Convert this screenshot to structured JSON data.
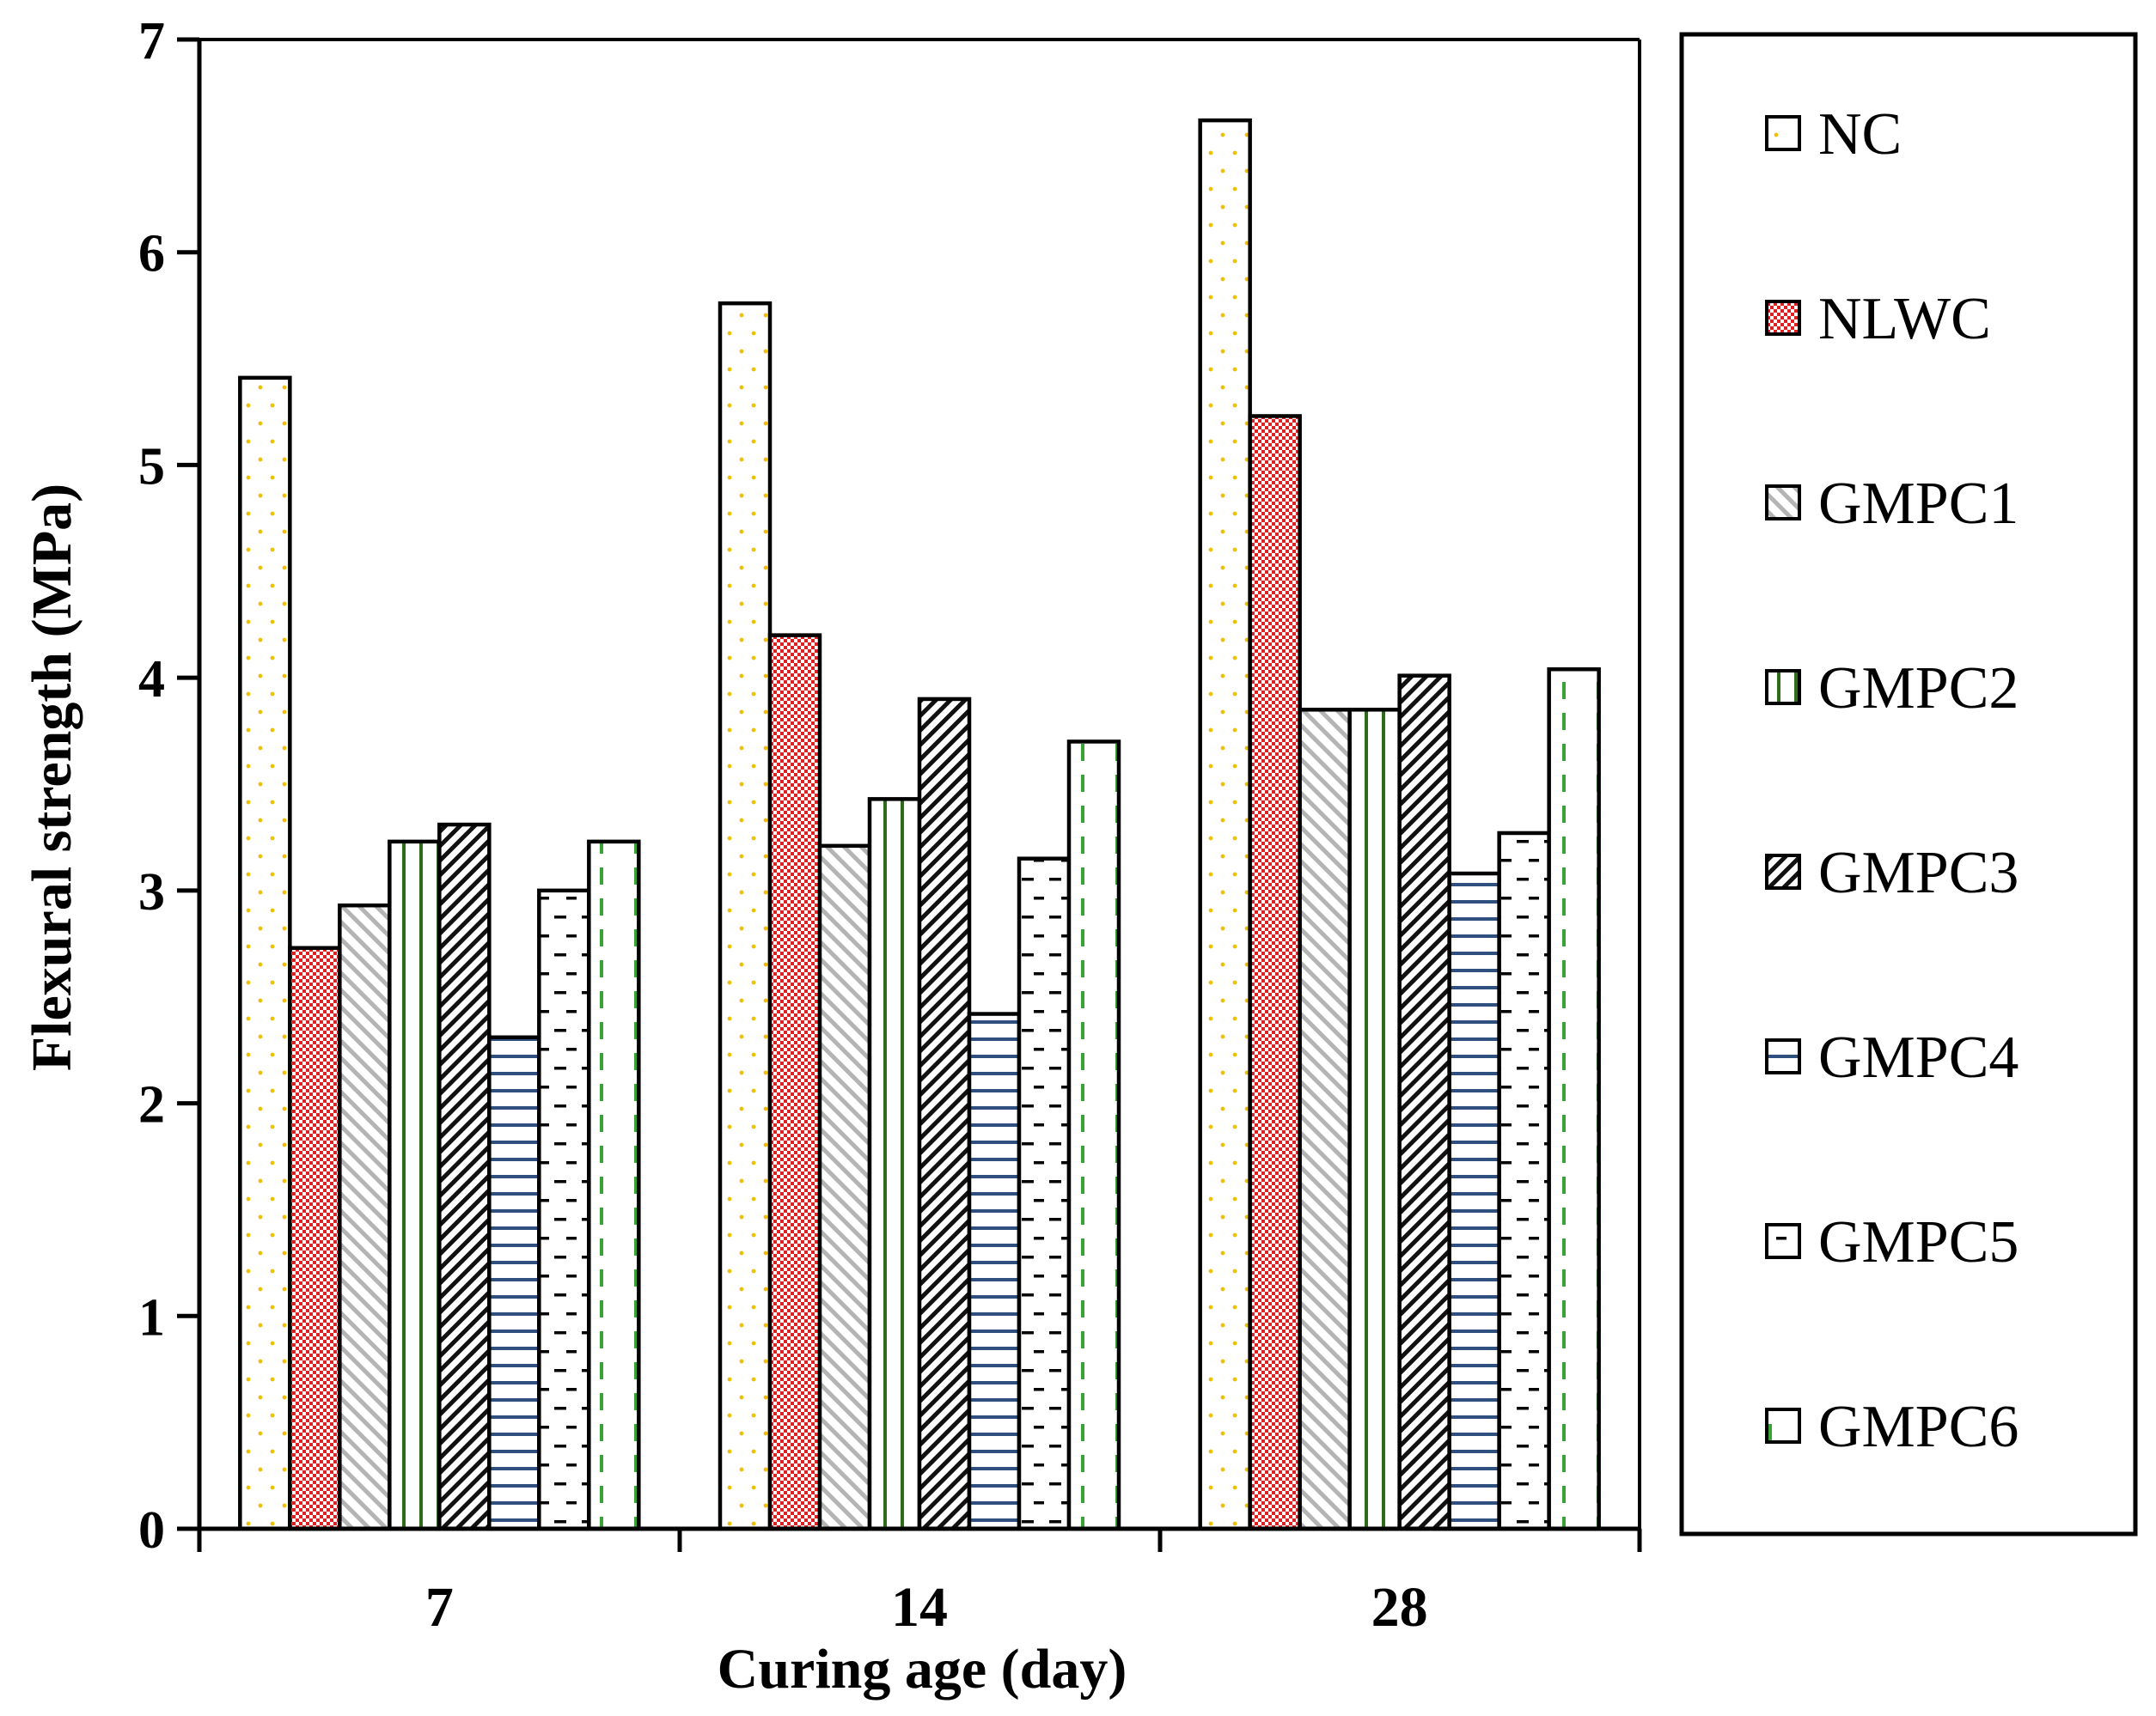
{
  "chart_data": {
    "type": "bar",
    "title": "",
    "xlabel": "Curing age (day)",
    "ylabel": "Flexural  strength (MPa)",
    "ylim": [
      0,
      7
    ],
    "yticks": [
      0,
      1,
      2,
      3,
      4,
      5,
      6,
      7
    ],
    "grid": false,
    "legend_position": "right",
    "categories": [
      "7",
      "14",
      "28"
    ],
    "series": [
      {
        "name": "NC",
        "values": [
          5.41,
          5.76,
          6.62
        ],
        "pattern": "dots",
        "color": "#f0c000"
      },
      {
        "name": "NLWC",
        "values": [
          2.73,
          4.2,
          5.23
        ],
        "pattern": "checker",
        "color": "#e02020"
      },
      {
        "name": "GMPC1",
        "values": [
          2.93,
          3.21,
          3.85
        ],
        "pattern": "diagonal-light",
        "color": "#b0b0b0"
      },
      {
        "name": "GMPC2",
        "values": [
          3.23,
          3.43,
          3.85
        ],
        "pattern": "vertical",
        "color": "#2e6b1a"
      },
      {
        "name": "GMPC3",
        "values": [
          3.31,
          3.9,
          4.01
        ],
        "pattern": "diagonal-dense",
        "color": "#000000"
      },
      {
        "name": "GMPC4",
        "values": [
          2.31,
          2.42,
          3.08
        ],
        "pattern": "horizontal",
        "color": "#2f4f7f"
      },
      {
        "name": "GMPC5",
        "values": [
          3.0,
          3.15,
          3.27
        ],
        "pattern": "dashes",
        "color": "#000000"
      },
      {
        "name": "GMPC6",
        "values": [
          3.23,
          3.7,
          4.04
        ],
        "pattern": "vertical-dashed",
        "color": "#3aa335"
      }
    ]
  }
}
